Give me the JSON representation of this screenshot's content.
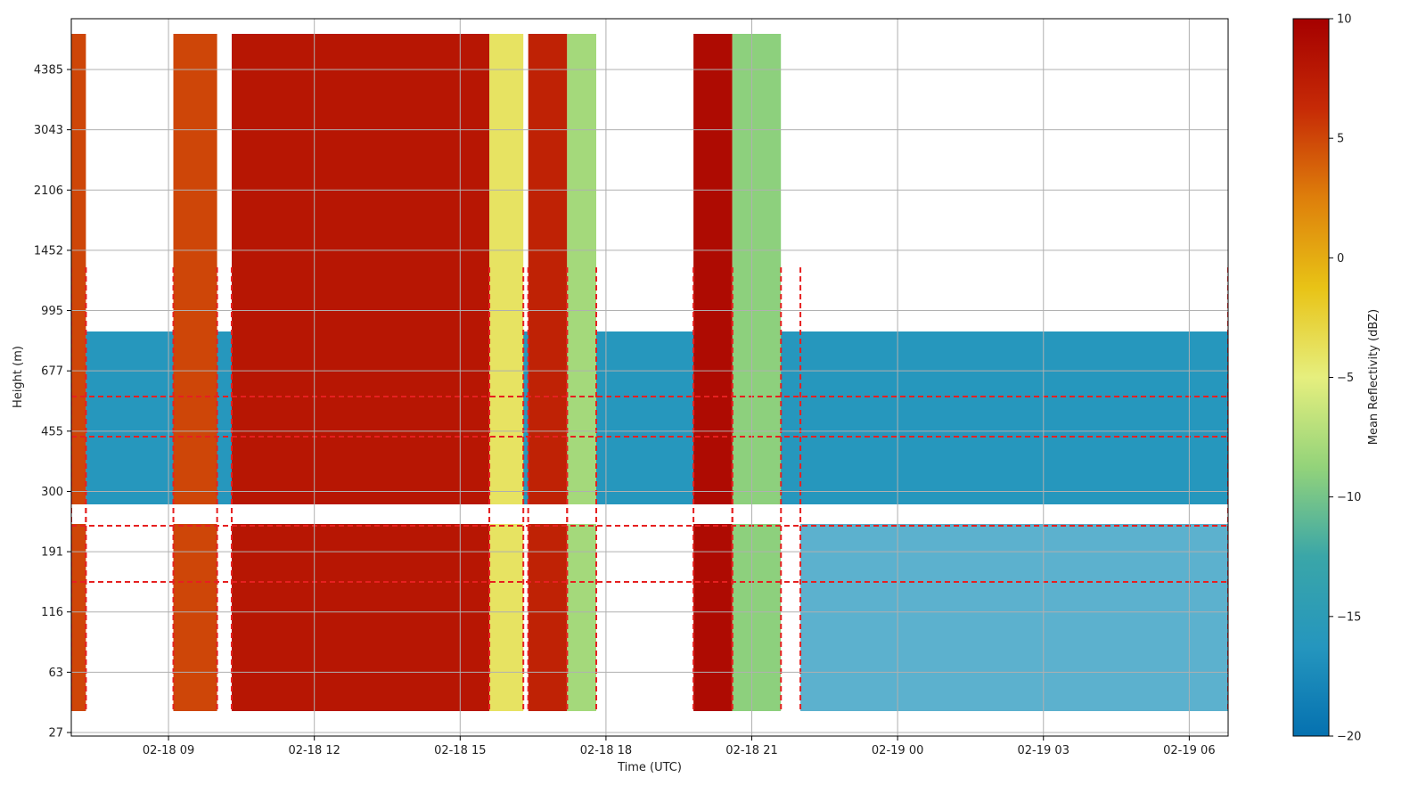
{
  "chart_data": {
    "type": "heatmap",
    "xlabel": "Time (UTC)",
    "ylabel": "Height (m)",
    "x_ticks": [
      "02-18 09",
      "02-18 12",
      "02-18 15",
      "02-18 18",
      "02-18 21",
      "02-19 00",
      "02-19 03",
      "02-19 06"
    ],
    "y_ticks": [
      "27",
      "63",
      "116",
      "191",
      "300",
      "455",
      "677",
      "995",
      "1452",
      "2106",
      "3043",
      "4385"
    ],
    "xlim_hours": [
      7.0,
      30.8
    ],
    "grid": true,
    "colorbar": {
      "label": "Mean Reflectivity (dBZ)",
      "range": [
        -20,
        10
      ],
      "ticks": [
        "10",
        "5",
        "0",
        "−5",
        "−10",
        "−15",
        "−20"
      ],
      "colormap_stops": [
        "#0571b0",
        "#2596be",
        "#3aa6a8",
        "#93d37a",
        "#e6ef7e",
        "#e8c316",
        "#de7f0b",
        "#c62a06",
        "#a50000"
      ]
    },
    "contour": {
      "color": "#e62020",
      "style": "dashed"
    },
    "regions": [
      {
        "band": "full",
        "x": [
          7.0,
          7.3
        ],
        "dbz": 5
      },
      {
        "band": "boundary_layer",
        "x": [
          7.3,
          30.8
        ],
        "dbz": -16
      },
      {
        "band": "full",
        "x": [
          9.1,
          10.0
        ],
        "dbz": 5
      },
      {
        "band": "full",
        "x": [
          10.3,
          15.6
        ],
        "dbz": 8
      },
      {
        "band": "full",
        "x": [
          15.6,
          16.3
        ],
        "dbz": -4
      },
      {
        "band": "full",
        "x": [
          16.4,
          17.2
        ],
        "dbz": 7
      },
      {
        "band": "full",
        "x": [
          17.2,
          17.8
        ],
        "dbz": -8
      },
      {
        "band": "full",
        "x": [
          19.8,
          20.6
        ],
        "dbz": 9
      },
      {
        "band": "full",
        "x": [
          20.6,
          21.6
        ],
        "dbz": -9
      },
      {
        "band": "sparse_low",
        "x": [
          22.0,
          30.8
        ],
        "dbz": -16
      }
    ]
  }
}
